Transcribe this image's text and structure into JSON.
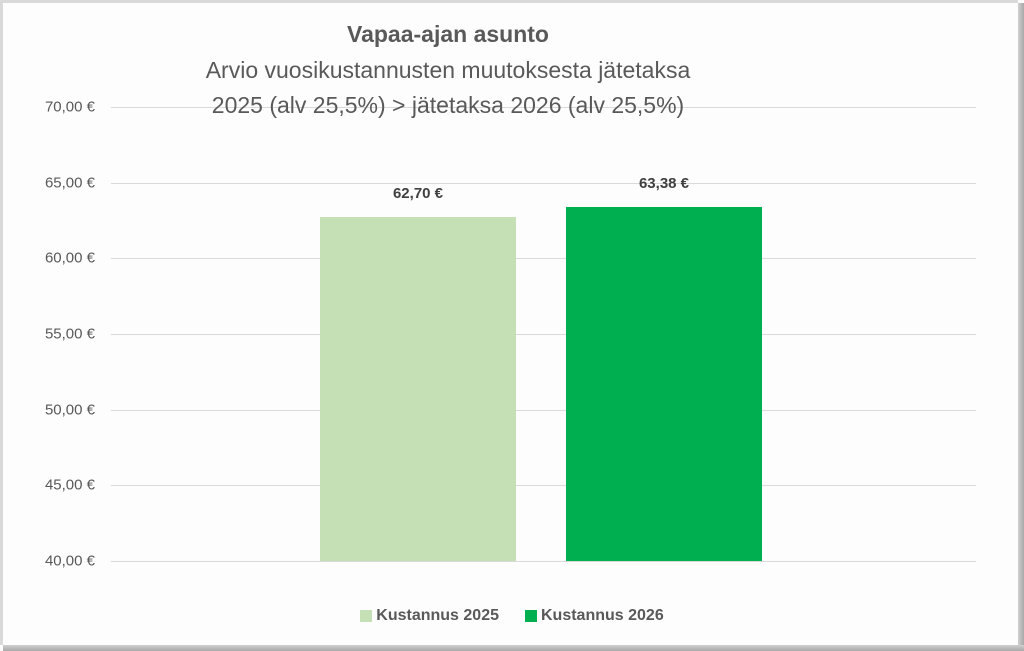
{
  "chart_data": {
    "type": "bar",
    "title": "Vapaa-ajan asunto",
    "subtitle": "Arvio vuosikustannusten muutoksesta jätetaksa 2025 (alv 25,5%) > jätetaksa 2026 (alv 25,5%)",
    "title_lines": [
      "Vapaa-ajan asunto",
      "Arvio vuosikustannusten muutoksesta jätetaksa",
      "2025 (alv 25,5%) > jätetaksa 2026 (alv 25,5%)"
    ],
    "categories": [
      "Kustannus 2025",
      "Kustannus 2026"
    ],
    "values": [
      62.7,
      63.38
    ],
    "data_labels": [
      "62,70 €",
      "63,38 €"
    ],
    "colors": [
      "#c5e0b4",
      "#00b050"
    ],
    "xlabel": "",
    "ylabel": "",
    "ylim": [
      40,
      70
    ],
    "y_ticks": [
      70,
      65,
      60,
      55,
      50,
      45,
      40
    ],
    "y_tick_labels": [
      "70,00 €",
      "65,00 €",
      "60,00 €",
      "55,00 €",
      "50,00 €",
      "45,00 €",
      "40,00 €"
    ],
    "grid": true,
    "legend_position": "bottom",
    "legend": [
      {
        "label": "Kustannus 2025",
        "color": "#c5e0b4"
      },
      {
        "label": "Kustannus 2026",
        "color": "#00b050"
      }
    ]
  }
}
